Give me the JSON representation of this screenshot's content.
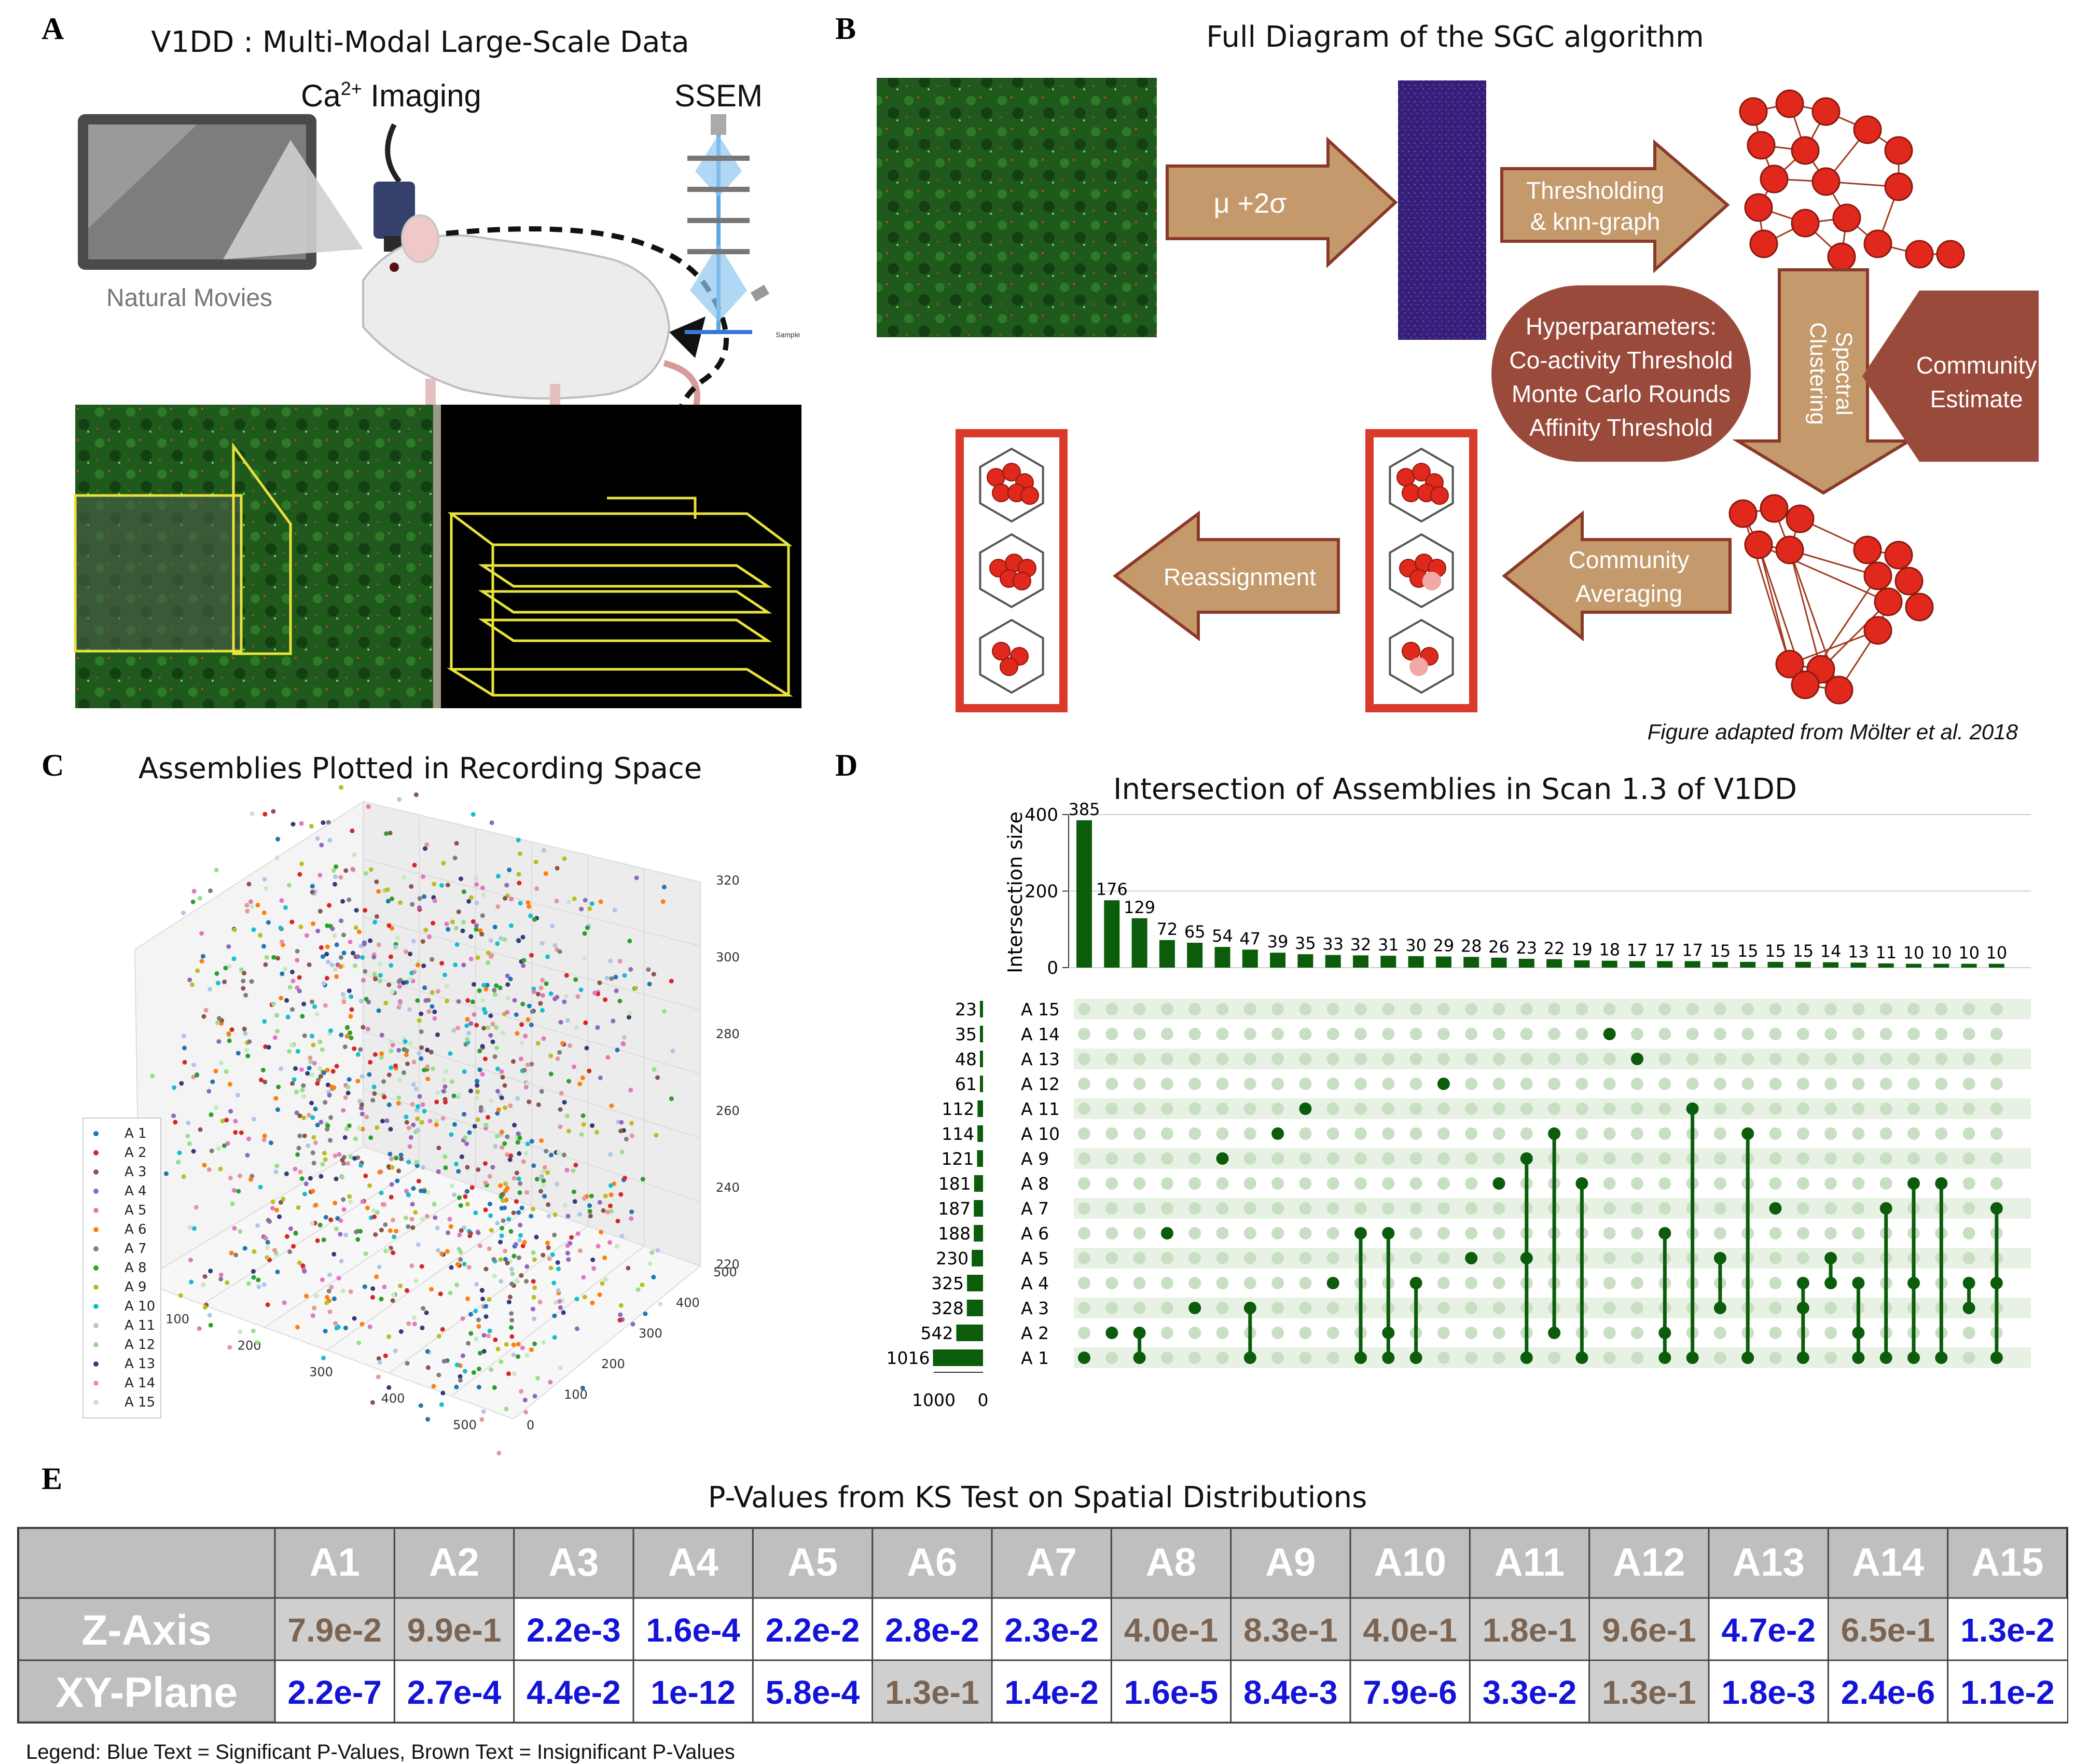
{
  "panels": {
    "a": {
      "label": "A",
      "title": "V1DD : Multi-Modal Large-Scale Data",
      "ca_imaging": "Ca",
      "ca_sup": "2+",
      "ca_rest": " Imaging",
      "ssem": "SSEM",
      "natural_movies": "Natural Movies",
      "sample": "Sample"
    },
    "b": {
      "label": "B",
      "title": "Full Diagram of the SGC algorithm",
      "mu_sigma": "μ +2σ",
      "thresholding_1": "Thresholding",
      "thresholding_2": "& knn-graph",
      "hyper_1": "Hyperparameters:",
      "hyper_2": "Co-activity Threshold",
      "hyper_3": "Monte Carlo Rounds",
      "hyper_4": "Affinity Threshold",
      "spectral_1": "Spectral",
      "spectral_2": "Clustering",
      "community_1": "Community",
      "community_2": "Estimate",
      "averaging_1": "Community",
      "averaging_2": "Averaging",
      "reassignment": "Reassignment",
      "caption": "Figure adapted from Mölter et al. 2018"
    },
    "c": {
      "label": "C",
      "title": "Assemblies Plotted in Recording Space",
      "legend": [
        "A 1",
        "A 2",
        "A 3",
        "A 4",
        "A 5",
        "A 6",
        "A 7",
        "A 8",
        "A 9",
        "A 10",
        "A 11",
        "A 12",
        "A 13",
        "A 14",
        "A 15"
      ],
      "z_ticks": [
        "320",
        "300",
        "280",
        "260",
        "240",
        "220"
      ],
      "x_ticks": [
        "100",
        "200",
        "300",
        "400",
        "500"
      ],
      "y_ticks": [
        "0",
        "100",
        "200",
        "300",
        "400",
        "500"
      ]
    },
    "d": {
      "label": "D",
      "title": "Intersection of Assemblies in Scan 1.3 of V1DD",
      "ylabel": "Intersection size",
      "y_ticks": [
        "400",
        "200",
        "0"
      ],
      "set_axis_ticks": [
        "1000",
        "0"
      ]
    },
    "e": {
      "label": "E",
      "title": "P-Values from KS Test on Spatial Distributions",
      "legend": "Legend: Blue Text = Significant P-Values, Brown Text = Insignificant P-Values"
    }
  },
  "colors": {
    "green": "#0b5c0b",
    "light_green": "#c9dfc4",
    "tan": "#c49a6c",
    "brown_red": "#9a4a3a",
    "node_red": "#e0281c",
    "blue_text": "#1414d8",
    "brown_text": "#7b6452",
    "table_gray": "#bfbfbf"
  },
  "chart_data": [
    {
      "type": "scatter",
      "panel": "C",
      "title": "Assemblies Plotted in Recording Space",
      "series": [
        "A 1",
        "A 2",
        "A 3",
        "A 4",
        "A 5",
        "A 6",
        "A 7",
        "A 8",
        "A 9",
        "A 10",
        "A 11",
        "A 12",
        "A 13",
        "A 14",
        "A 15"
      ],
      "xlim": [
        0,
        500
      ],
      "ylim": [
        0,
        500
      ],
      "zlim": [
        220,
        320
      ]
    },
    {
      "type": "bar",
      "panel": "D",
      "title": "Intersection of Assemblies in Scan 1.3 of V1DD",
      "ylabel": "Intersection size",
      "ylim": [
        0,
        400
      ],
      "values": [
        385,
        176,
        129,
        72,
        65,
        54,
        47,
        39,
        35,
        33,
        32,
        31,
        30,
        29,
        28,
        26,
        23,
        22,
        19,
        18,
        17,
        17,
        17,
        15,
        15,
        15,
        15,
        14,
        13,
        11,
        10,
        10,
        10,
        10
      ],
      "memberships": [
        [
          1
        ],
        [
          2
        ],
        [
          2,
          1
        ],
        [
          6
        ],
        [
          3
        ],
        [
          9
        ],
        [
          3,
          1
        ],
        [
          10
        ],
        [
          11
        ],
        [
          4
        ],
        [
          6,
          1
        ],
        [
          6,
          2,
          1
        ],
        [
          4,
          1
        ],
        [
          12
        ],
        [
          5
        ],
        [
          8
        ],
        [
          9,
          5,
          1
        ],
        [
          10,
          2
        ],
        [
          8,
          1
        ],
        [
          14
        ],
        [
          13
        ],
        [
          6,
          2,
          1
        ],
        [
          11,
          1
        ],
        [
          5,
          3
        ],
        [
          10,
          1
        ],
        [
          7
        ],
        [
          4,
          3,
          1
        ],
        [
          5,
          4
        ],
        [
          4,
          2,
          1
        ],
        [
          7,
          1
        ],
        [
          8,
          4,
          1
        ],
        [
          8,
          1
        ],
        [
          4,
          3
        ],
        [
          7,
          4,
          1
        ]
      ],
      "sets": [
        {
          "name": "A 15",
          "size": 23
        },
        {
          "name": "A 14",
          "size": 35
        },
        {
          "name": "A 13",
          "size": 48
        },
        {
          "name": "A 12",
          "size": 61
        },
        {
          "name": "A 11",
          "size": 112
        },
        {
          "name": "A 10",
          "size": 114
        },
        {
          "name": "A 9",
          "size": 121
        },
        {
          "name": "A 8",
          "size": 181
        },
        {
          "name": "A 7",
          "size": 187
        },
        {
          "name": "A 6",
          "size": 188
        },
        {
          "name": "A 5",
          "size": 230
        },
        {
          "name": "A 4",
          "size": 325
        },
        {
          "name": "A 3",
          "size": 328
        },
        {
          "name": "A 2",
          "size": 542
        },
        {
          "name": "A 1",
          "size": 1016
        }
      ]
    },
    {
      "type": "table",
      "panel": "E",
      "columns": [
        "A1",
        "A2",
        "A3",
        "A4",
        "A5",
        "A6",
        "A7",
        "A8",
        "A9",
        "A10",
        "A11",
        "A12",
        "A13",
        "A14",
        "A15"
      ],
      "rows": [
        {
          "name": "Z-Axis",
          "values": [
            "7.9e-2",
            "9.9e-1",
            "2.2e-3",
            "1.6e-4",
            "2.2e-2",
            "2.8e-2",
            "2.3e-2",
            "4.0e-1",
            "8.3e-1",
            "4.0e-1",
            "1.8e-1",
            "9.6e-1",
            "4.7e-2",
            "6.5e-1",
            "1.3e-2"
          ],
          "significant": [
            false,
            false,
            true,
            true,
            true,
            true,
            true,
            false,
            false,
            false,
            false,
            false,
            true,
            false,
            true
          ]
        },
        {
          "name": "XY-Plane",
          "values": [
            "2.2e-7",
            "2.7e-4",
            "4.4e-2",
            "1e-12",
            "5.8e-4",
            "1.3e-1",
            "1.4e-2",
            "1.6e-5",
            "8.4e-3",
            "7.9e-6",
            "3.3e-2",
            "1.3e-1",
            "1.8e-3",
            "2.4e-6",
            "1.1e-2"
          ],
          "significant": [
            true,
            true,
            true,
            true,
            true,
            false,
            true,
            true,
            true,
            true,
            true,
            false,
            true,
            true,
            true
          ]
        }
      ]
    }
  ]
}
